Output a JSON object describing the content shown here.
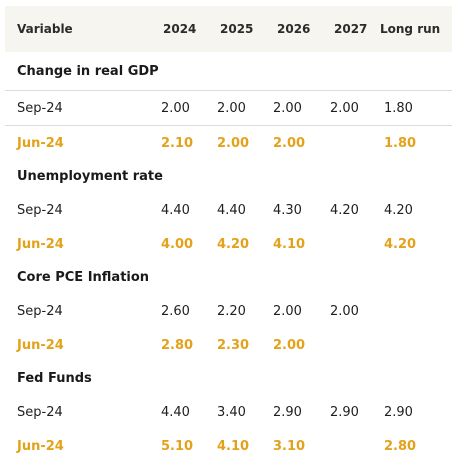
{
  "header": {
    "variable": "Variable",
    "y2024": "2024",
    "y2025": "2025",
    "y2026": "2026",
    "y2027": "2027",
    "long_run": "Long run"
  },
  "sections": [
    {
      "title": "Change in real GDP",
      "sep": {
        "label": "Sep-24",
        "v2024": "2.00",
        "v2025": "2.00",
        "v2026": "2.00",
        "v2027": "2.00",
        "long_run": "1.80"
      },
      "jun": {
        "label": "Jun-24",
        "v2024": "2.10",
        "v2025": "2.00",
        "v2026": "2.00",
        "v2027": "",
        "long_run": "1.80"
      }
    },
    {
      "title": "Unemployment rate",
      "sep": {
        "label": "Sep-24",
        "v2024": "4.40",
        "v2025": "4.40",
        "v2026": "4.30",
        "v2027": "4.20",
        "long_run": "4.20"
      },
      "jun": {
        "label": "Jun-24",
        "v2024": "4.00",
        "v2025": "4.20",
        "v2026": "4.10",
        "v2027": "",
        "long_run": "4.20"
      }
    },
    {
      "title": "Core PCE Inflation",
      "sep": {
        "label": "Sep-24",
        "v2024": "2.60",
        "v2025": "2.20",
        "v2026": "2.00",
        "v2027": "2.00",
        "long_run": ""
      },
      "jun": {
        "label": "Jun-24",
        "v2024": "2.80",
        "v2025": "2.30",
        "v2026": "2.00",
        "v2027": "",
        "long_run": ""
      }
    },
    {
      "title": "Fed Funds",
      "sep": {
        "label": "Sep-24",
        "v2024": "4.40",
        "v2025": "3.40",
        "v2026": "2.90",
        "v2027": "2.90",
        "long_run": "2.90"
      },
      "jun": {
        "label": "Jun-24",
        "v2024": "5.10",
        "v2025": "4.10",
        "v2026": "3.10",
        "v2027": "",
        "long_run": "2.80"
      }
    }
  ],
  "colors": {
    "header_bg": "#f7f5ef",
    "highlight": "#e3a21a",
    "divider": "#dcdcdc"
  }
}
